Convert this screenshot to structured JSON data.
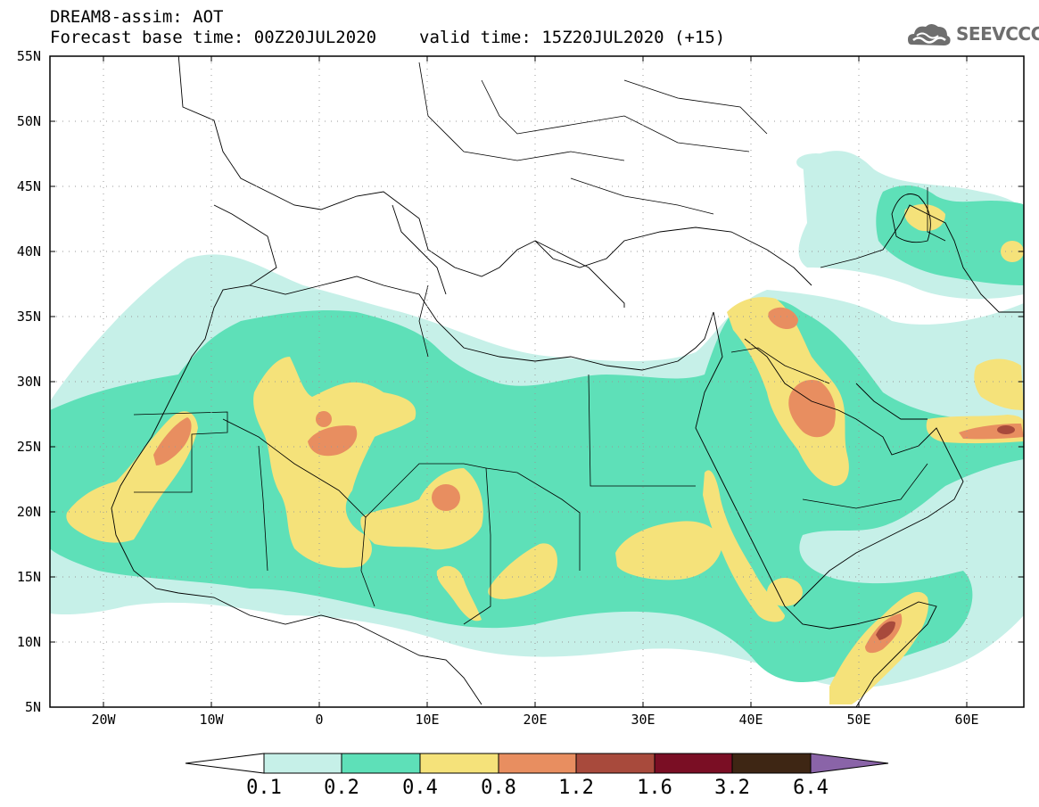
{
  "header": {
    "title": "DREAM8-assim: AOT",
    "base_time": "Forecast base time: 00Z20JUL2020",
    "valid_time": "valid time: 15Z20JUL2020 (+15)"
  },
  "logo": {
    "text": "SEEVCCC",
    "icon": "cloud-logo-icon"
  },
  "map": {
    "lat_labels": [
      "55N",
      "50N",
      "45N",
      "40N",
      "35N",
      "30N",
      "25N",
      "20N",
      "15N",
      "10N",
      "5N"
    ],
    "lon_labels": [
      "20W",
      "10W",
      "0",
      "10E",
      "20E",
      "30E",
      "40E",
      "50E",
      "60E"
    ],
    "grid": true
  },
  "colorbar": {
    "levels": [
      "0.1",
      "0.2",
      "0.4",
      "0.8",
      "1.2",
      "1.6",
      "3.2",
      "6.4"
    ],
    "colors": [
      "#ffffff",
      "#c6f0e8",
      "#5ee0b8",
      "#f5e27a",
      "#e88e60",
      "#a84a3c",
      "#7a0e24",
      "#3e2614",
      "#8a64a8"
    ]
  },
  "colors": {
    "aot_0_1": "#c6f0e8",
    "aot_0_2": "#5ee0b8",
    "aot_0_4": "#f5e27a",
    "aot_0_8": "#e88e60",
    "aot_1_2": "#a84a3c"
  }
}
